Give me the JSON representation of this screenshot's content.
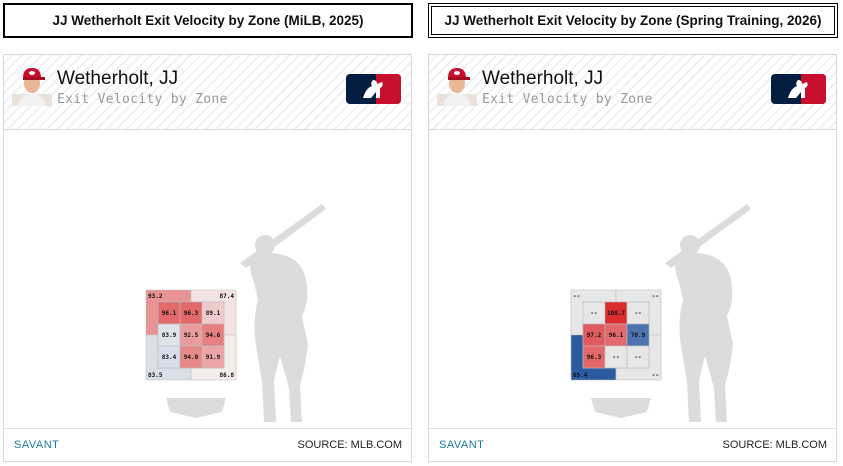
{
  "titles": {
    "left": "JJ Wetherholt Exit Velocity by Zone (MiLB, 2025)",
    "right": "JJ Wetherholt Exit Velocity by Zone (Spring Training, 2026)"
  },
  "panels": [
    {
      "player": "Wetherholt, JJ",
      "subtitle": "Exit Velocity by Zone",
      "savant": "SAVANT",
      "source": "SOURCE: MLB.COM"
    },
    {
      "player": "Wetherholt, JJ",
      "subtitle": "Exit Velocity by Zone",
      "savant": "SAVANT",
      "source": "SOURCE: MLB.COM"
    }
  ],
  "icons": {
    "headshot": "player-headshot-icon",
    "logo": "mlb-logo-icon",
    "batter": "batter-silhouette-icon",
    "plate": "home-plate-icon"
  },
  "colors": {
    "hot": "#d7191c",
    "cold": "#2c5aa0",
    "neutral": "#e4e4e4"
  },
  "chart_data": [
    {
      "type": "heatmap",
      "title": "JJ Wetherholt Exit Velocity by Zone (MiLB, 2025)",
      "inner_zones": [
        [
          "96.1",
          "96.3",
          "89.1"
        ],
        [
          "83.9",
          "92.5",
          "94.6"
        ],
        [
          "83.4",
          "94.0",
          "91.9"
        ]
      ],
      "inner_values": [
        [
          96.1,
          96.3,
          89.1
        ],
        [
          83.9,
          92.5,
          94.6
        ],
        [
          83.4,
          94.0,
          91.9
        ]
      ],
      "outer_zones": {
        "top_left": "93.2",
        "top_right": "87.4",
        "bottom_left": "83.5",
        "bottom_right": "86.8"
      },
      "outer_values": {
        "top_left": 93.2,
        "top_right": 87.4,
        "bottom_left": 83.5,
        "bottom_right": 86.8
      }
    },
    {
      "type": "heatmap",
      "title": "JJ Wetherholt Exit Velocity by Zone (Spring Training, 2026)",
      "inner_zones": [
        [
          "--",
          "100.7",
          "--"
        ],
        [
          "97.2",
          "96.1",
          "70.9"
        ],
        [
          "96.3",
          "--",
          "--"
        ]
      ],
      "inner_values": [
        [
          null,
          100.7,
          null
        ],
        [
          97.2,
          96.1,
          70.9
        ],
        [
          96.3,
          null,
          null
        ]
      ],
      "outer_zones": {
        "top_left": "--",
        "top_right": "--",
        "bottom_left": "65.4",
        "bottom_right": "--"
      },
      "outer_values": {
        "top_left": null,
        "top_right": null,
        "bottom_left": 65.4,
        "bottom_right": null
      }
    }
  ]
}
